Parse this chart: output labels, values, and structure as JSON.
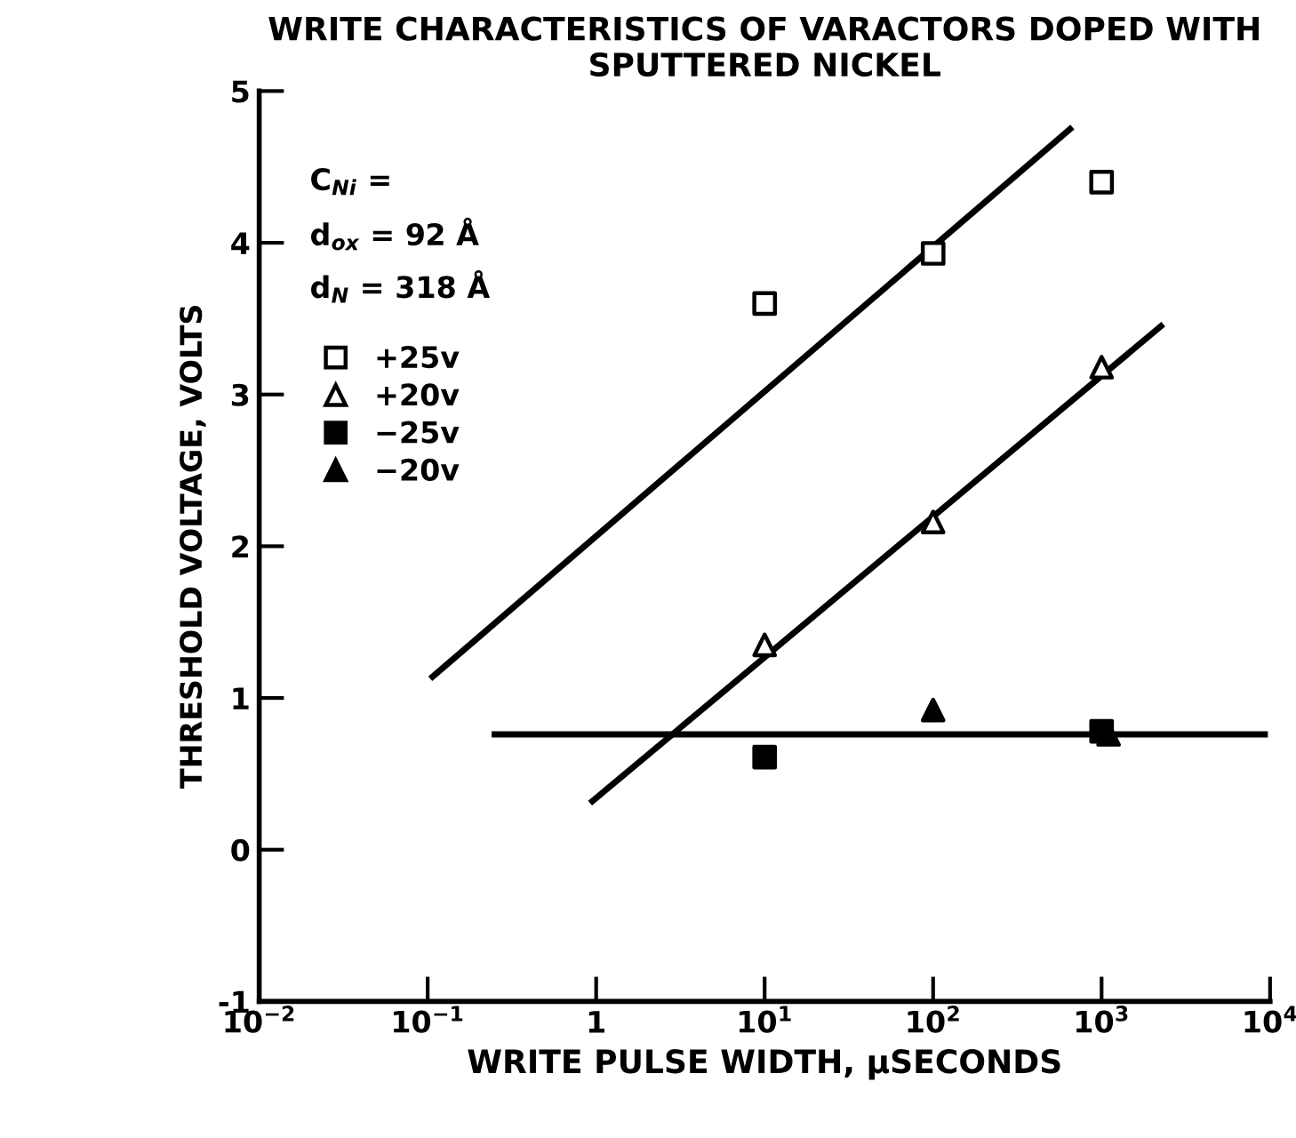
{
  "chart_data": {
    "type": "scatter",
    "title": "WRITE CHARACTERISTICS OF VARACTORS DOPED WITH\nSPUTTERED NICKEL",
    "xlabel": "WRITE PULSE WIDTH, μSECONDS",
    "ylabel": "THRESHOLD VOLTAGE, VOLTS",
    "log": "x",
    "xlim": [
      0.01,
      10000
    ],
    "ylim": [
      -1,
      5
    ],
    "xticks": [
      {
        "value": 0.01,
        "label": "10$^{−2}$"
      },
      {
        "value": 0.1,
        "label": "10$^{−1}$"
      },
      {
        "value": 1,
        "label": "1"
      },
      {
        "value": 10,
        "label": "10$^{1}$"
      },
      {
        "value": 100,
        "label": "10$^{2}$"
      },
      {
        "value": 1000,
        "label": "10$^{3}$"
      },
      {
        "value": 10000,
        "label": "10$^{4}$"
      }
    ],
    "yticks": [
      -1,
      0,
      1,
      2,
      3,
      4,
      5
    ],
    "grid": false,
    "legend": "top left",
    "annotations": [
      "C$_{Ni}$ =",
      "d$_{ox}$ = 92 Å",
      "d$_{N}$ = 318 Å"
    ],
    "series": [
      {
        "name": "+25v",
        "color": "#ffffff",
        "marker": "square",
        "x": [
          10,
          100,
          1000
        ],
        "values": [
          3.6,
          3.93,
          4.4
        ]
      },
      {
        "name": "+20v",
        "color": "#ffffff",
        "marker": "triangle",
        "x": [
          10,
          100,
          1000
        ],
        "values": [
          1.35,
          2.16,
          3.18
        ]
      },
      {
        "name": "−25v",
        "color": "#000000",
        "marker": "square",
        "x": [
          10,
          1000
        ],
        "values": [
          0.61,
          0.78
        ]
      },
      {
        "name": "−20v",
        "color": "#000000",
        "marker": "triangle",
        "x": [
          100,
          1100
        ],
        "values": [
          0.92,
          0.76
        ]
      },
      {
        "type": "line",
        "color": "#000000",
        "marker": "none",
        "x": [
          0.107,
          650
        ],
        "values": [
          1.14,
          4.75
        ]
      },
      {
        "type": "line",
        "color": "#000000",
        "marker": "none",
        "x": [
          0.95,
          2250
        ],
        "values": [
          0.32,
          3.45
        ]
      },
      {
        "type": "line",
        "color": "#000000",
        "marker": "none",
        "x": [
          0.25,
          9300
        ],
        "values": [
          0.76,
          0.76
        ]
      }
    ]
  }
}
